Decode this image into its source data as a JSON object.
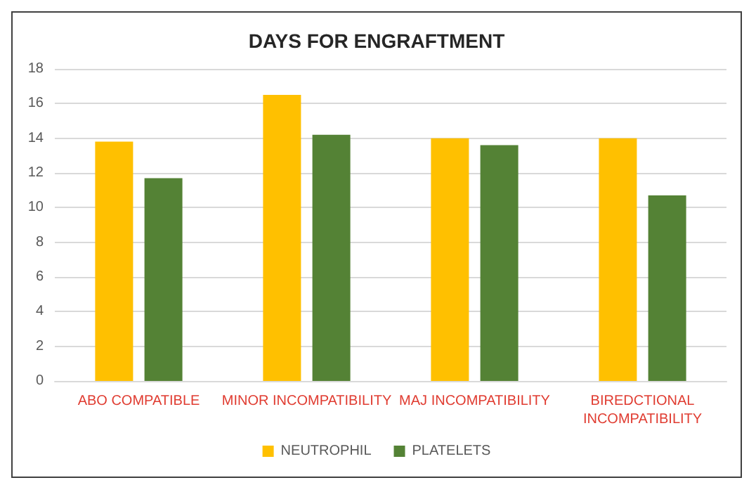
{
  "chart_data": {
    "type": "bar",
    "title": "DAYS FOR ENGRAFTMENT",
    "categories": [
      "ABO COMPATIBLE",
      "MINOR INCOMPATIBILITY",
      "MAJ INCOMPATIBILITY",
      "BIREDCTIONAL INCOMPATIBILITY"
    ],
    "series": [
      {
        "name": "NEUTROPHIL",
        "color": "#ffc000",
        "values": [
          13.8,
          16.5,
          14.0,
          14.0
        ]
      },
      {
        "name": "PLATELETS",
        "color": "#548235",
        "values": [
          11.7,
          14.2,
          13.6,
          10.7
        ]
      }
    ],
    "ylim": [
      0,
      18
    ],
    "yticks": [
      0,
      2,
      4,
      6,
      8,
      10,
      12,
      14,
      16,
      18
    ],
    "grid": "y",
    "legend": "bottom"
  }
}
